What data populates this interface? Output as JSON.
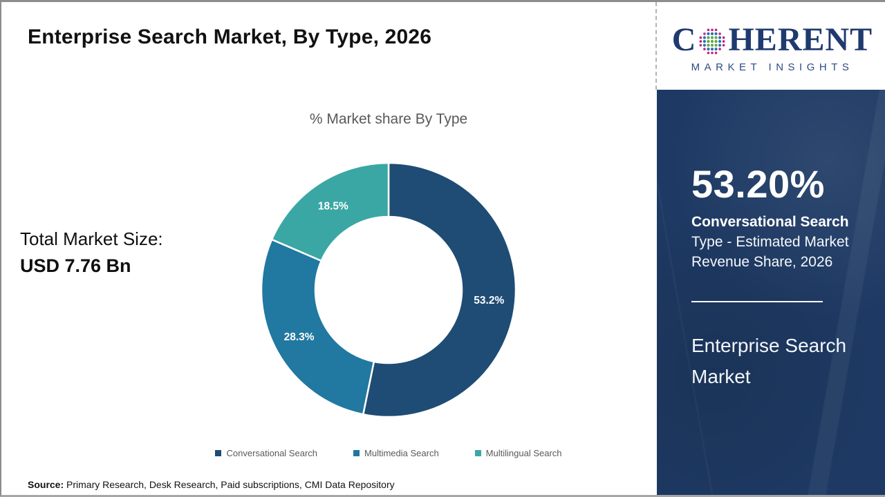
{
  "page": {
    "title": "Enterprise Search Market, By Type, 2026"
  },
  "logo": {
    "name": "Coherent Market Insights",
    "word_start": "C",
    "word_end": "HERENT",
    "tagline": "MARKET INSIGHTS",
    "text_color": "#1f3a6e",
    "globe_dot_colors": {
      "inner": "#5ba845",
      "mid": "#2e6fb0",
      "outer": "#c02582"
    }
  },
  "total_market": {
    "label": "Total Market Size:",
    "value": "USD 7.76 Bn"
  },
  "chart_data": {
    "type": "pie",
    "subtype": "donut",
    "title": "% Market share By Type",
    "categories": [
      "Conversational Search",
      "Multimedia Search",
      "Multilingual Search"
    ],
    "values": [
      53.2,
      28.3,
      18.5
    ],
    "labels": [
      "53.2%",
      "28.3%",
      "18.5%"
    ],
    "colors": [
      "#1e4c74",
      "#2178a0",
      "#3aa7a4"
    ],
    "units": "%",
    "start_angle_deg": 0,
    "direction": "clockwise",
    "legend_position": "bottom",
    "outer_radius_px": 185,
    "inner_radius_px": 106
  },
  "sidebar": {
    "bg_color": "#1e3a64",
    "stat_value": "53.20%",
    "stat_line1": "Conversational Search",
    "stat_line2": "Type - Estimated Market",
    "stat_line3": "Revenue Share, 2026",
    "market_line1": "Enterprise Search",
    "market_line2": "Market"
  },
  "footer": {
    "source_label": "Source:",
    "source_text": "Primary Research, Desk Research, Paid subscriptions, CMI Data Repository"
  }
}
